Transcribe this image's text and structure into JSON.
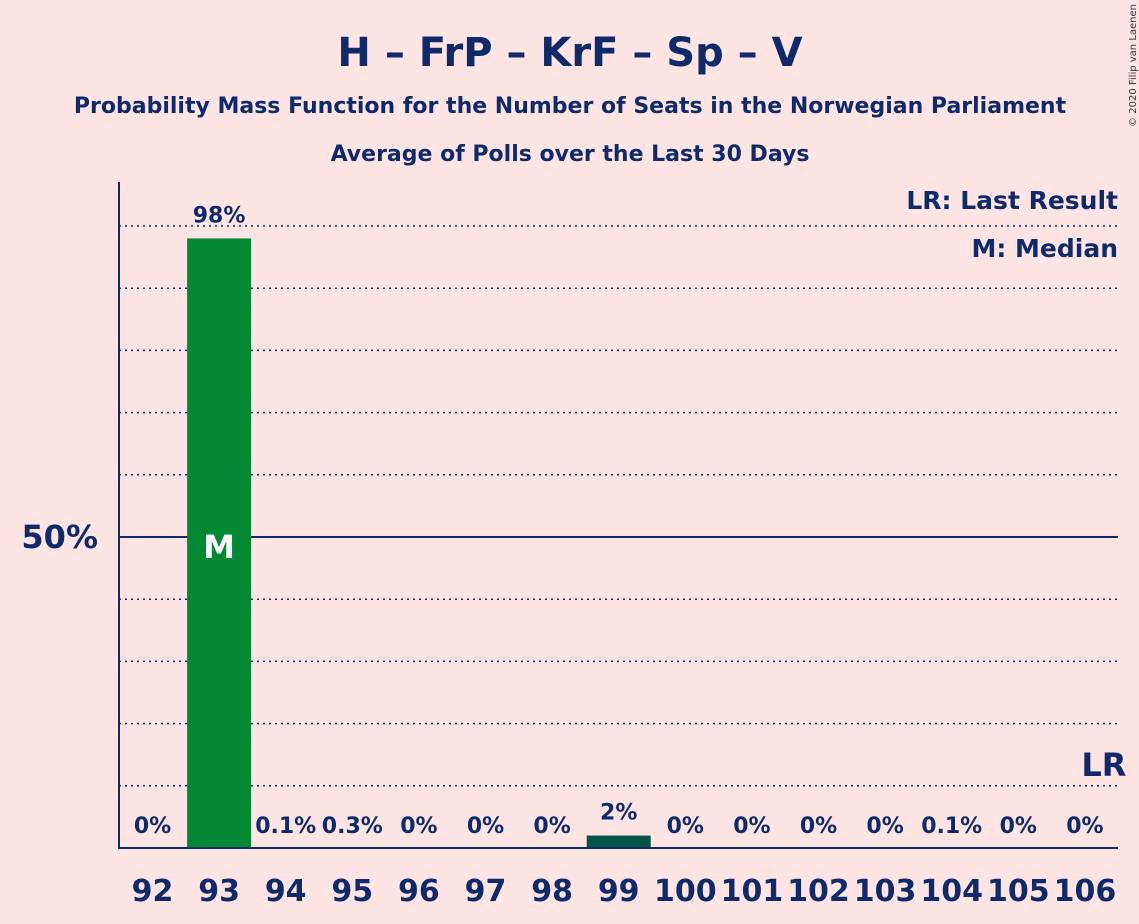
{
  "header": {
    "title": "H – FrP – KrF – Sp – V",
    "subtitle1": "Probability Mass Function for the Number of Seats in the Norwegian Parliament",
    "subtitle2": "Average of Polls over the Last 30 Days",
    "copyright": "© 2020 Filip van Laenen"
  },
  "legend": {
    "lr": "LR: Last Result",
    "m": "M: Median"
  },
  "colors": {
    "background": "#ffe4e4",
    "text": "#0e2a6b",
    "bar_main": "#008833",
    "bar_other": "#005544"
  },
  "chart_data": {
    "type": "bar",
    "categories": [
      "92",
      "93",
      "94",
      "95",
      "96",
      "97",
      "98",
      "99",
      "100",
      "101",
      "102",
      "103",
      "104",
      "105",
      "106"
    ],
    "values": [
      0,
      98,
      0.1,
      0.3,
      0,
      0,
      0,
      2,
      0,
      0,
      0,
      0,
      0.1,
      0,
      0
    ],
    "labels": [
      "0%",
      "98%",
      "0.1%",
      "0.3%",
      "0%",
      "0%",
      "0%",
      "2%",
      "0%",
      "0%",
      "0%",
      "0%",
      "0.1%",
      "0%",
      "0%"
    ],
    "ylim": [
      0,
      107
    ],
    "yticks": [
      {
        "value": 50,
        "label": "50%"
      }
    ],
    "grid_dotted_every": 10,
    "median_category": "93",
    "median_label": "M",
    "last_result_category": "106",
    "last_result_label": "LR"
  }
}
